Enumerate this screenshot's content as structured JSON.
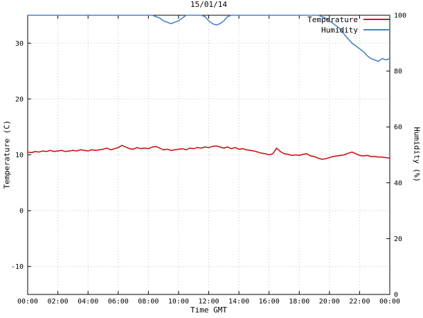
{
  "chart_data": {
    "type": "line",
    "title": "15/01/14",
    "xlabel": "Time GMT",
    "ylabel_left": "Temperature (C)",
    "ylabel_right": "Humidity (%)",
    "grid": true,
    "legend_position": "top-right-inside",
    "x_axis": {
      "min_hour": 0,
      "max_hour": 24,
      "tick_step_hours": 2,
      "tick_labels": [
        "00:00",
        "02:00",
        "04:00",
        "06:00",
        "08:00",
        "10:00",
        "12:00",
        "14:00",
        "16:00",
        "18:00",
        "20:00",
        "22:00",
        "00:00"
      ]
    },
    "left_axis": {
      "min": -15,
      "max": 35,
      "ticks": [
        -10,
        0,
        10,
        20,
        30
      ]
    },
    "right_axis": {
      "min": 0,
      "max": 100,
      "ticks": [
        0,
        20,
        40,
        60,
        80,
        100
      ]
    },
    "series": [
      {
        "name": "Temperature",
        "axis": "left",
        "color": "#cc1414",
        "start_hour": 0,
        "step_hours": 0.25,
        "values": [
          10.5,
          10.4,
          10.6,
          10.5,
          10.7,
          10.6,
          10.8,
          10.6,
          10.7,
          10.8,
          10.6,
          10.7,
          10.8,
          10.7,
          10.9,
          10.8,
          10.7,
          10.9,
          10.8,
          10.9,
          11.0,
          11.2,
          10.9,
          11.1,
          11.3,
          11.7,
          11.4,
          11.1,
          11.0,
          11.3,
          11.1,
          11.2,
          11.1,
          11.4,
          11.5,
          11.2,
          10.9,
          11.0,
          10.8,
          10.9,
          11.0,
          11.1,
          10.9,
          11.2,
          11.1,
          11.3,
          11.2,
          11.4,
          11.3,
          11.5,
          11.6,
          11.4,
          11.2,
          11.4,
          11.1,
          11.3,
          11.0,
          11.1,
          10.9,
          10.8,
          10.7,
          10.5,
          10.3,
          10.2,
          10.0,
          10.2,
          11.2,
          10.6,
          10.2,
          10.1,
          9.9,
          10.0,
          9.9,
          10.1,
          10.2,
          9.8,
          9.7,
          9.4,
          9.2,
          9.3,
          9.5,
          9.7,
          9.8,
          9.9,
          10.0,
          10.3,
          10.5,
          10.2,
          9.9,
          9.8,
          9.9,
          9.7,
          9.7,
          9.6,
          9.6,
          9.5,
          9.4
        ]
      },
      {
        "name": "Humidity",
        "axis": "right",
        "color": "#4682c4",
        "start_hour": 0,
        "step_hours": 0.25,
        "values": [
          100,
          100,
          100,
          100,
          100,
          100,
          100,
          100,
          100,
          100,
          100,
          100,
          100,
          100,
          100,
          100,
          100,
          100,
          100,
          100,
          100,
          100,
          100,
          100,
          100,
          100,
          100,
          100,
          100,
          100,
          100,
          100,
          100,
          100,
          99.5,
          99,
          98,
          97.5,
          97,
          97.5,
          98,
          99,
          100,
          100,
          100,
          100,
          100,
          99.5,
          98,
          97,
          96.5,
          97,
          98,
          99.5,
          100,
          100,
          100,
          100,
          100,
          100,
          100,
          100,
          100,
          100,
          100,
          100,
          100,
          100,
          100,
          100,
          100,
          100,
          100,
          100,
          100,
          100,
          100,
          100,
          99.5,
          99,
          98,
          97,
          96,
          95,
          93,
          91.5,
          90,
          89,
          88,
          87,
          85.5,
          84.5,
          84,
          83.5,
          84.5,
          84,
          84.5
        ]
      }
    ]
  }
}
